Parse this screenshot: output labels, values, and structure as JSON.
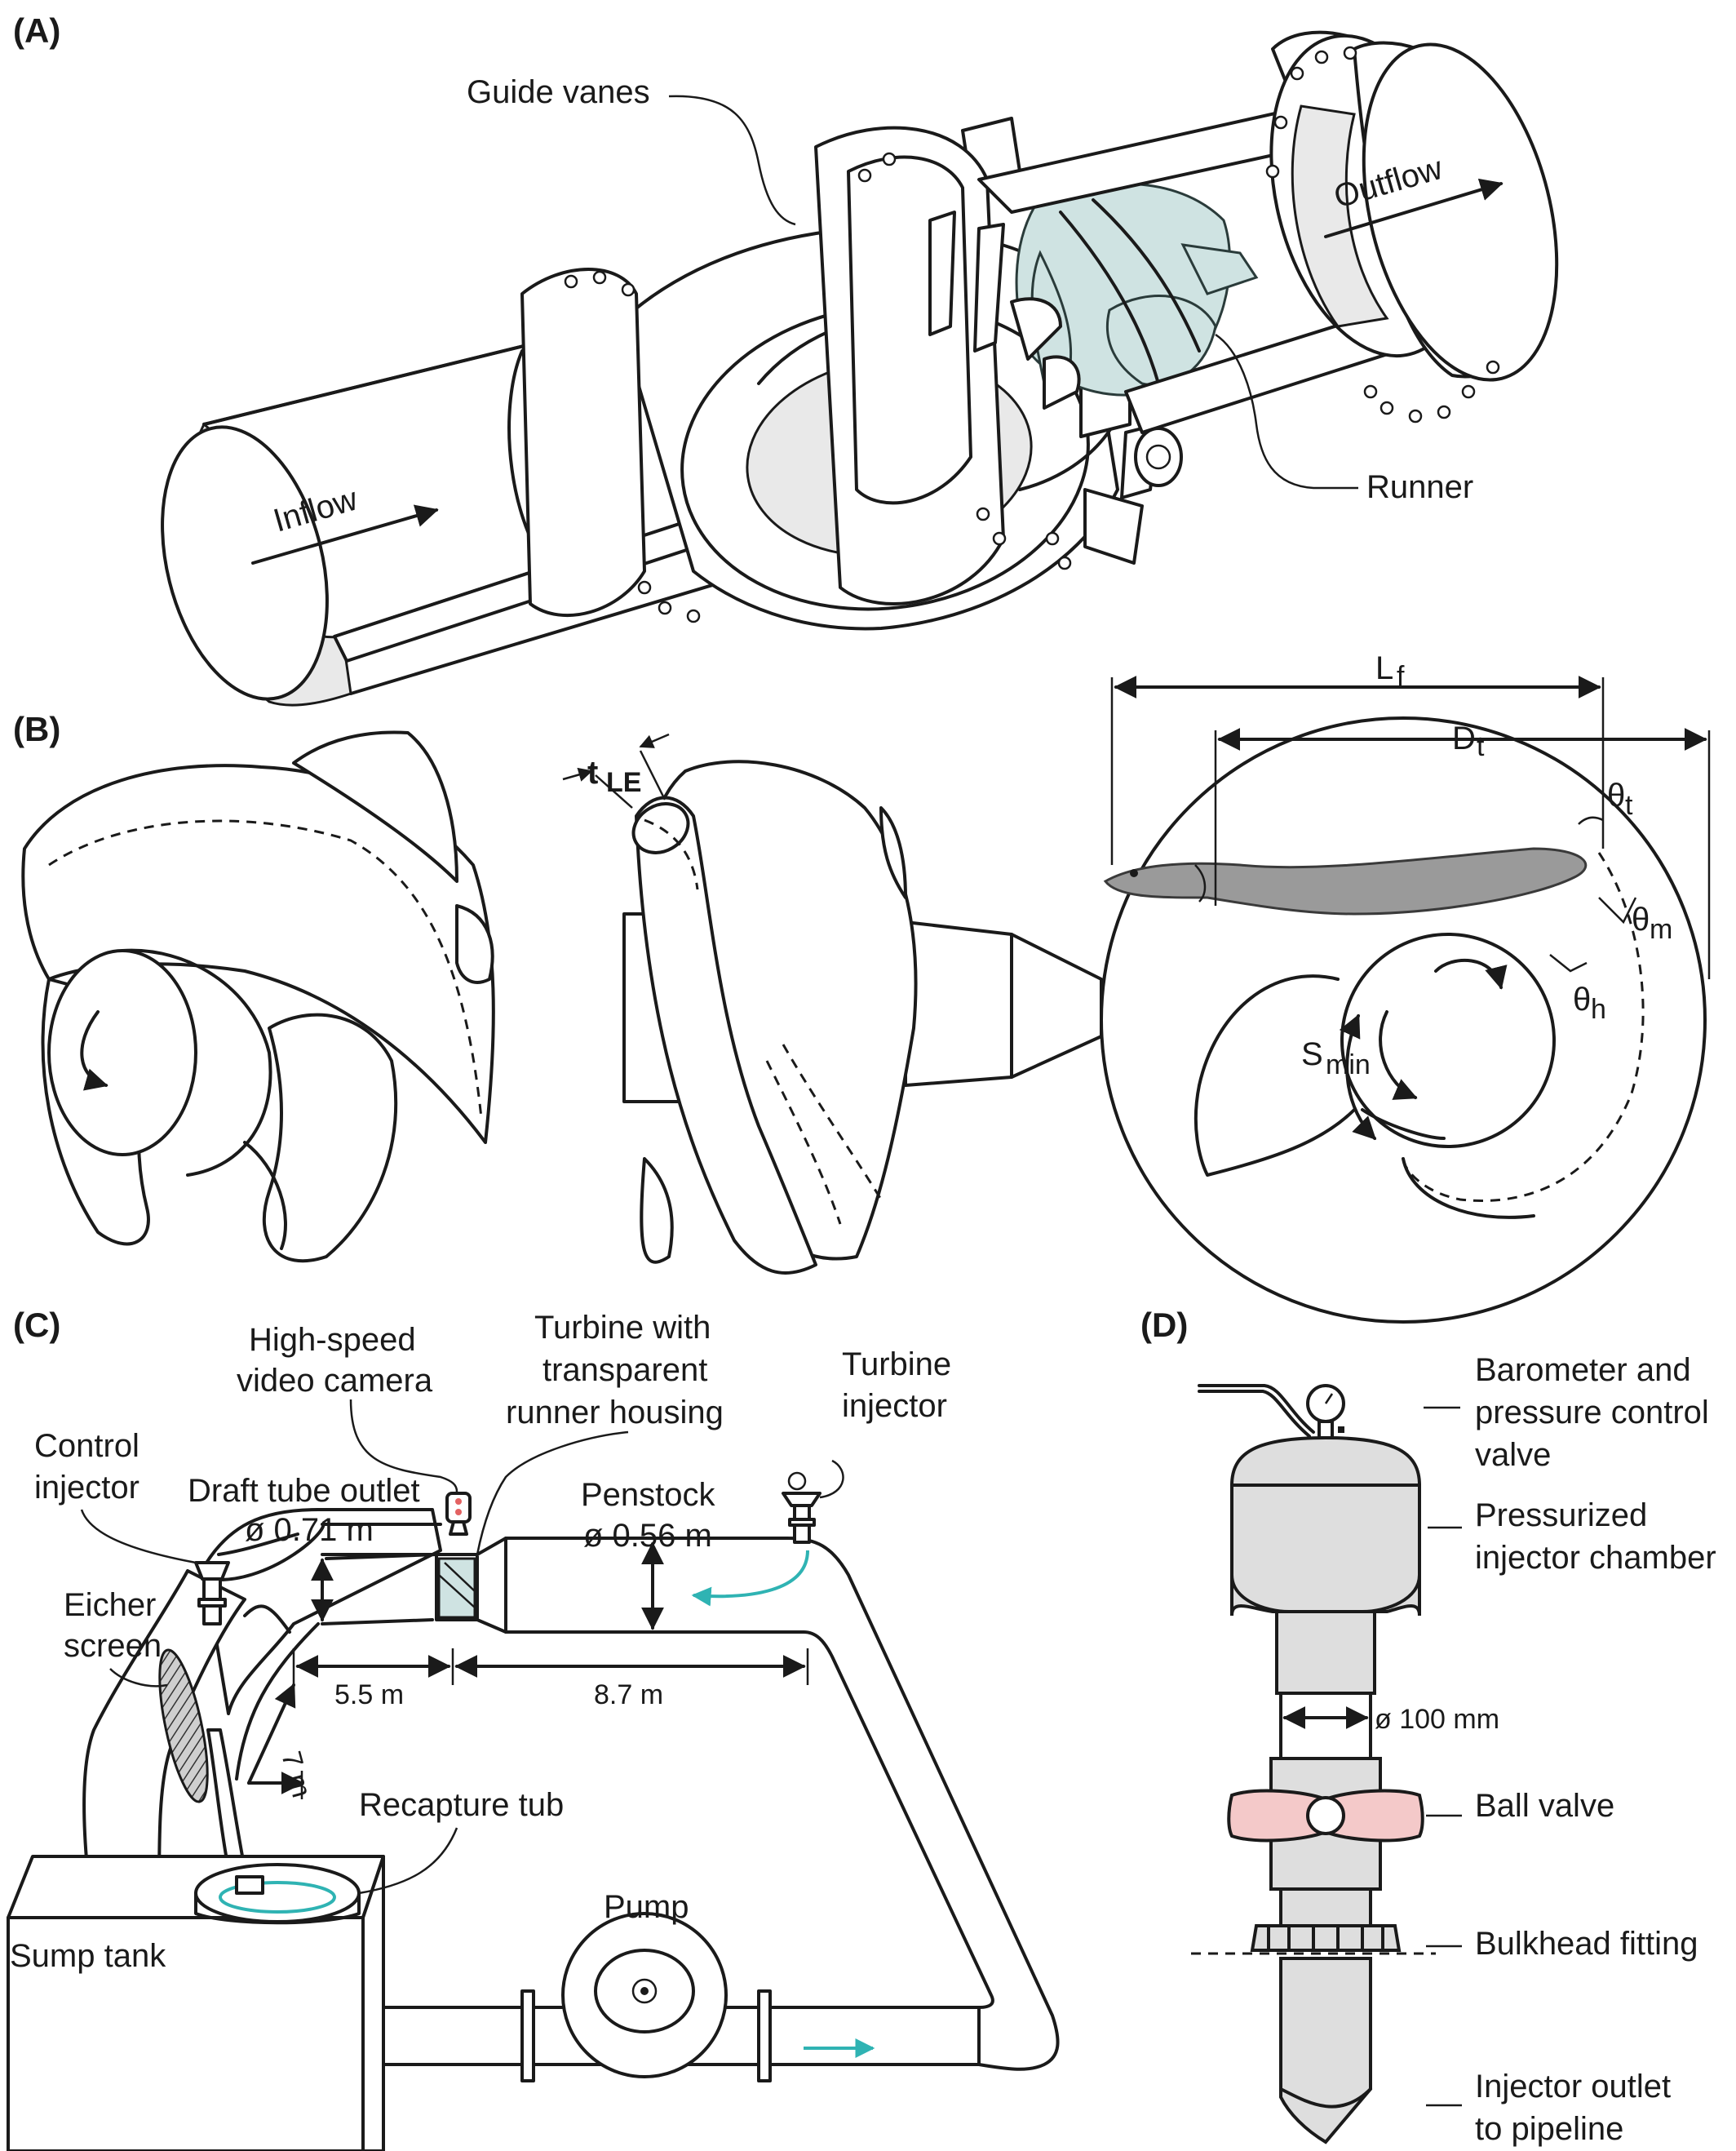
{
  "panels": {
    "a": "(A)",
    "b": "(B)",
    "c": "(C)",
    "d": "(D)"
  },
  "panel_a": {
    "guide_vanes": "Guide vanes",
    "outflow": "Outflow",
    "inflow": "Inflow",
    "runner": "Runner"
  },
  "panel_b": {
    "t": "t",
    "t_sub": "LE",
    "lf": "L",
    "lf_sub": "f",
    "dt": "D",
    "dt_sub": "t",
    "theta_t": "θ",
    "theta_t_sub": "t",
    "theta_m": "θ",
    "theta_m_sub": "m",
    "theta_h": "θ",
    "theta_h_sub": "h",
    "smin": "S",
    "smin_sub": "min"
  },
  "panel_c": {
    "camera_1": "High-speed",
    "camera_2": "video camera",
    "turbine_1": "Turbine with",
    "turbine_2": "transparent",
    "turbine_3": "runner housing",
    "turbine_injector_1": "Turbine",
    "turbine_injector_2": "injector",
    "control_injector_1": "Control",
    "control_injector_2": "injector",
    "draft_tube": "Draft tube outlet",
    "draft_tube_dia": "ø 0.71 m",
    "penstock": "Penstock",
    "penstock_dia": "ø 0.56 m",
    "eicher_1": "Eicher",
    "eicher_2": "screen",
    "dim_55": "5.5 m",
    "dim_87": "8.7 m",
    "dim_7": "7 m",
    "recapture": "Recapture tub",
    "pump": "Pump",
    "sump": "Sump tank"
  },
  "panel_d": {
    "barometer_1": "Barometer and",
    "barometer_2": "pressure control",
    "barometer_3": "valve",
    "chamber_1": "Pressurized",
    "chamber_2": "injector chamber",
    "dia": "ø 100 mm",
    "ball_valve": "Ball valve",
    "bulkhead": "Bulkhead fitting",
    "outlet_1": "Injector outlet",
    "outlet_2": "to pipeline"
  },
  "colors": {
    "blade": "#cfe3e2",
    "flow_arrow": "#2fb3b3",
    "ball_valve": "#f4c9c9",
    "eel": "#9a9a9a"
  }
}
